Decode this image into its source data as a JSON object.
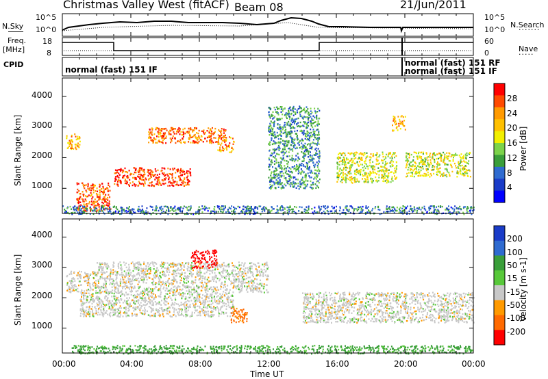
{
  "header": {
    "station": "Christmas Valley West (fitACF)",
    "beam": "Beam 08",
    "date": "21/Jun/2011"
  },
  "strips": {
    "nsky_label": "N.Sky",
    "nsky_ticks": [
      "10^5",
      "10^0"
    ],
    "nsearch_label": "N.Search",
    "freq_label": "Freq.",
    "freq_unit": "[MHz]",
    "freq_ticks": [
      "18",
      "8"
    ],
    "nave_label": "Nave",
    "nave_ticks": [
      "60",
      "0"
    ],
    "cpid_label": "CPID",
    "cpid_main": "normal (fast) 151 IF",
    "cpid_late_1": "normal (fast) 151 RF",
    "cpid_late_2": "normal (fast) 151 IF"
  },
  "chart_data": [
    {
      "type": "heatmap",
      "title": "",
      "ylabel": "Slant Range [km]",
      "xlabel": "Time UT",
      "x_range_hours": [
        0,
        24
      ],
      "ylim": [
        180,
        4600
      ],
      "y_ticks": [
        "4000",
        "3000",
        "2000",
        "1000"
      ],
      "x_ticks": [
        "00:00",
        "04:00",
        "08:00",
        "12:00",
        "16:00",
        "20:00",
        "00:00"
      ],
      "colorbar": {
        "label": "Power [dB]",
        "ticks": [
          "28",
          "24",
          "20",
          "16",
          "12",
          "8",
          "4"
        ],
        "colors": [
          "#ff0000",
          "#ff4a00",
          "#ff9a00",
          "#ffc000",
          "#f2ef00",
          "#7cd34a",
          "#3a9e3a",
          "#2f6bd0",
          "#1a3cc8",
          "#0000ff"
        ]
      },
      "regions": [
        {
          "t0": 0.2,
          "t1": 1.0,
          "r0": 2300,
          "r1": 2800,
          "value": 22
        },
        {
          "t0": 0.8,
          "t1": 2.8,
          "r0": 250,
          "r1": 1200,
          "value": 27
        },
        {
          "t0": 3.0,
          "t1": 7.5,
          "r0": 1100,
          "r1": 1700,
          "value": 28
        },
        {
          "t0": 5.0,
          "t1": 9.5,
          "r0": 2500,
          "r1": 3000,
          "value": 26
        },
        {
          "t0": 9.0,
          "t1": 10.0,
          "r0": 2200,
          "r1": 2700,
          "value": 24
        },
        {
          "t0": 12.0,
          "t1": 15.0,
          "r0": 1000,
          "r1": 3700,
          "value": 12
        },
        {
          "t0": 16.0,
          "t1": 19.5,
          "r0": 1200,
          "r1": 2200,
          "value": 18
        },
        {
          "t0": 20.0,
          "t1": 23.8,
          "r0": 1400,
          "r1": 2200,
          "value": 18
        },
        {
          "t0": 19.2,
          "t1": 20.0,
          "r0": 2900,
          "r1": 3400,
          "value": 22
        },
        {
          "t0": 0.0,
          "t1": 24.0,
          "r0": 180,
          "r1": 450,
          "value": 10
        }
      ]
    },
    {
      "type": "heatmap",
      "title": "",
      "ylabel": "Slant Range [km]",
      "xlabel": "Time UT",
      "x_range_hours": [
        0,
        24
      ],
      "ylim": [
        180,
        4600
      ],
      "y_ticks": [
        "4000",
        "3000",
        "2000",
        "1000"
      ],
      "x_ticks": [
        "00:00",
        "04:00",
        "08:00",
        "12:00",
        "16:00",
        "20:00",
        "00:00"
      ],
      "colorbar": {
        "label": "Velocity [m s-1]",
        "ticks": [
          "200",
          "100",
          "50",
          "15",
          "-15",
          "-50",
          "-100",
          "-200"
        ],
        "colors": [
          "#1a3cc8",
          "#2f6bd0",
          "#3a9e3a",
          "#58c83a",
          "#c8c8c8",
          "#ff9a00",
          "#ff6a00",
          "#ff0000"
        ]
      },
      "regions": [
        {
          "t0": 0.2,
          "t1": 2.0,
          "r0": 2200,
          "r1": 2900,
          "value": 0
        },
        {
          "t0": 1.0,
          "t1": 10.0,
          "r0": 1400,
          "r1": 2200,
          "value": 0
        },
        {
          "t0": 2.0,
          "t1": 12.0,
          "r0": 2200,
          "r1": 3200,
          "value": 0
        },
        {
          "t0": 7.5,
          "t1": 9.0,
          "r0": 3000,
          "r1": 3600,
          "value": -180
        },
        {
          "t0": 0.5,
          "t1": 24.0,
          "r0": 180,
          "r1": 450,
          "value": 60
        },
        {
          "t0": 14.0,
          "t1": 24.0,
          "r0": 1200,
          "r1": 2200,
          "value": 0
        },
        {
          "t0": 9.8,
          "t1": 10.8,
          "r0": 1200,
          "r1": 1700,
          "value": -60
        }
      ]
    }
  ]
}
